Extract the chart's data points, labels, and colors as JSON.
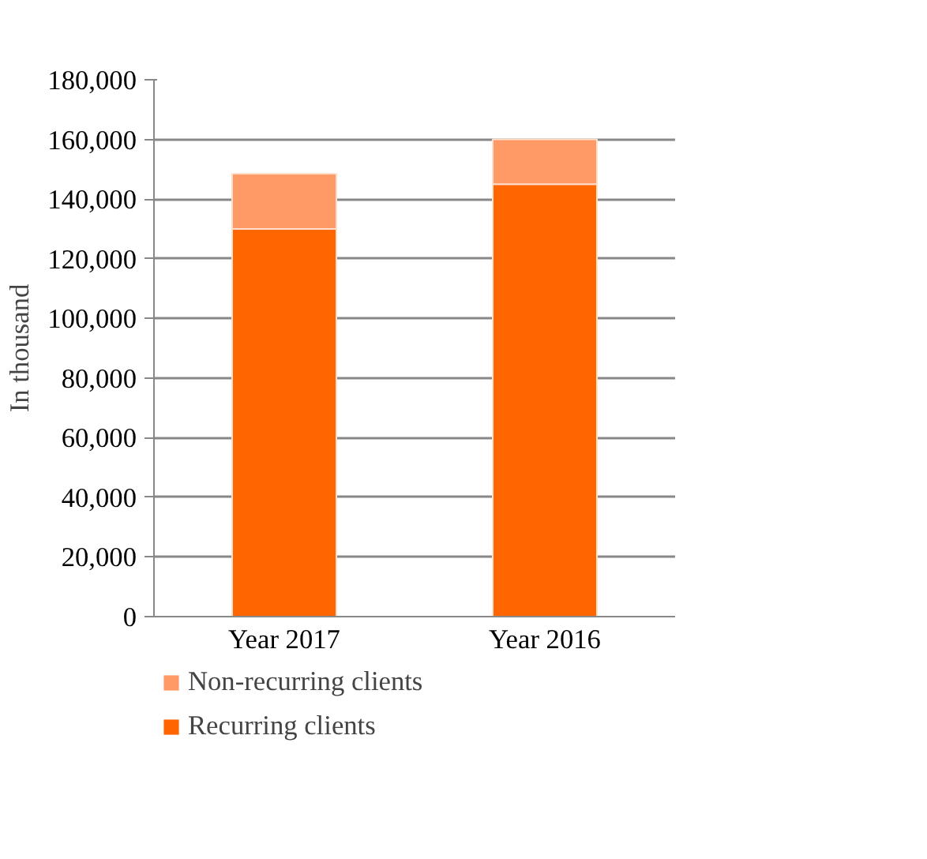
{
  "chart_data": {
    "type": "bar",
    "stacked": true,
    "ylabel": "In thousand",
    "categories": [
      "Year 2017",
      "Year 2016"
    ],
    "series": [
      {
        "name": "Recurring clients",
        "color": "#ff6600",
        "values": [
          130000,
          145000
        ]
      },
      {
        "name": "Non-recurring clients",
        "color": "#ff9966",
        "values": [
          18500,
          15000
        ]
      }
    ],
    "ylim": [
      0,
      180000
    ],
    "yticks": [
      {
        "value": 0,
        "label": "0"
      },
      {
        "value": 20000,
        "label": "20,000"
      },
      {
        "value": 40000,
        "label": "40,000"
      },
      {
        "value": 60000,
        "label": "60,000"
      },
      {
        "value": 80000,
        "label": "80,000"
      },
      {
        "value": 100000,
        "label": "100,000"
      },
      {
        "value": 120000,
        "label": "120,000"
      },
      {
        "value": 140000,
        "label": "140,000"
      },
      {
        "value": 160000,
        "label": "160,000"
      },
      {
        "value": 180000,
        "label": "180,000"
      }
    ],
    "grid": "y",
    "legend": "bottom"
  }
}
